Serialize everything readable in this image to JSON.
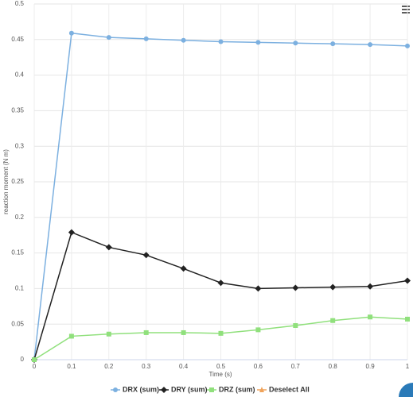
{
  "chart_data": {
    "type": "line",
    "y_label": "reaction moment (N m)",
    "x_label": "Time (s)",
    "x": [
      0,
      0.1,
      0.2,
      0.3,
      0.4,
      0.5,
      0.6,
      0.7,
      0.8,
      0.9,
      1
    ],
    "series": [
      {
        "name": "DRX (sum)",
        "color": "#7cb0e0",
        "marker": "circle",
        "values": [
          0,
          0.459,
          0.453,
          0.451,
          0.449,
          0.447,
          0.446,
          0.445,
          0.444,
          0.443,
          0.441
        ]
      },
      {
        "name": "DRY (sum)",
        "color": "#222222",
        "marker": "diamond",
        "values": [
          0,
          0.179,
          0.158,
          0.147,
          0.128,
          0.108,
          0.1,
          0.101,
          0.102,
          0.103,
          0.111
        ]
      },
      {
        "name": "DRZ (sum)",
        "color": "#90e07c",
        "marker": "square",
        "values": [
          0,
          0.033,
          0.036,
          0.038,
          0.038,
          0.037,
          0.042,
          0.048,
          0.055,
          0.06,
          0.057
        ]
      }
    ],
    "legend_action": {
      "label": "Deselect All",
      "color": "#f0a35a"
    },
    "xlim": [
      0,
      1
    ],
    "xticks": [
      0,
      0.1,
      0.2,
      0.3,
      0.4,
      0.5,
      0.6,
      0.7,
      0.8,
      0.9,
      1
    ],
    "ylim": [
      0,
      0.5
    ],
    "yticks": [
      0,
      0.05,
      0.1,
      0.15,
      0.2,
      0.25,
      0.3,
      0.35,
      0.4,
      0.45,
      0.5
    ],
    "grid": true,
    "legend": "bottom"
  }
}
